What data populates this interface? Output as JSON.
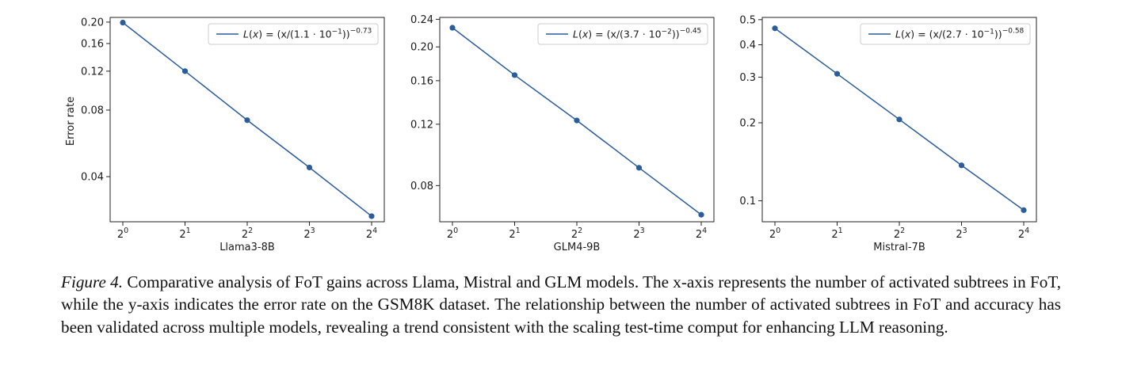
{
  "chart_data": [
    {
      "type": "line",
      "xlabel": "Llama3-8B",
      "ylabel": "Error rate",
      "x": [
        1,
        2,
        4,
        8,
        16
      ],
      "x_tick_labels": [
        {
          "base": "2",
          "exp": "0"
        },
        {
          "base": "2",
          "exp": "1"
        },
        {
          "base": "2",
          "exp": "2"
        },
        {
          "base": "2",
          "exp": "3"
        },
        {
          "base": "2",
          "exp": "4"
        }
      ],
      "x_scale": "log2",
      "y_scale": "log",
      "ylim": [
        0.025,
        0.21
      ],
      "y_ticks": [
        0.04,
        0.08,
        0.12,
        0.16,
        0.2
      ],
      "y_tick_labels": [
        "0.04",
        "0.08",
        "0.12",
        "0.16",
        "0.20"
      ],
      "grid": false,
      "legend_position": "top-right",
      "series": [
        {
          "name": "L(x) = (x/(1.1 · 10^{−1}))^{−0.73}",
          "legend": {
            "prefix": "(x/(1.1 · 10",
            "inner_exp": "−1",
            "mid": "))",
            "outer_exp": "−0.73"
          },
          "values": [
            0.199,
            0.12,
            0.072,
            0.044,
            0.0265
          ],
          "color": "#2b5d9b"
        }
      ]
    },
    {
      "type": "line",
      "xlabel": "GLM4-9B",
      "ylabel": "",
      "x": [
        1,
        2,
        4,
        8,
        16
      ],
      "x_tick_labels": [
        {
          "base": "2",
          "exp": "0"
        },
        {
          "base": "2",
          "exp": "1"
        },
        {
          "base": "2",
          "exp": "2"
        },
        {
          "base": "2",
          "exp": "3"
        },
        {
          "base": "2",
          "exp": "4"
        }
      ],
      "x_scale": "log2",
      "y_scale": "log",
      "ylim": [
        0.063,
        0.243
      ],
      "y_ticks": [
        0.08,
        0.12,
        0.16,
        0.2,
        0.24
      ],
      "y_tick_labels": [
        "0.08",
        "0.12",
        "0.16",
        "0.20",
        "0.24"
      ],
      "grid": false,
      "legend_position": "top-right",
      "series": [
        {
          "name": "L(x) = (x/(3.7 · 10^{−2}))^{−0.45}",
          "legend": {
            "prefix": "(x/(3.7 · 10",
            "inner_exp": "−2",
            "mid": "))",
            "outer_exp": "−0.45"
          },
          "values": [
            0.227,
            0.166,
            0.123,
            0.09,
            0.066
          ],
          "color": "#2b5d9b"
        }
      ]
    },
    {
      "type": "line",
      "xlabel": "Mistral-7B",
      "ylabel": "",
      "x": [
        1,
        2,
        4,
        8,
        16
      ],
      "x_tick_labels": [
        {
          "base": "2",
          "exp": "0"
        },
        {
          "base": "2",
          "exp": "1"
        },
        {
          "base": "2",
          "exp": "2"
        },
        {
          "base": "2",
          "exp": "3"
        },
        {
          "base": "2",
          "exp": "4"
        }
      ],
      "x_scale": "log2",
      "y_scale": "log",
      "ylim": [
        0.083,
        0.51
      ],
      "y_ticks": [
        0.1,
        0.2,
        0.3,
        0.4,
        0.5
      ],
      "y_tick_labels": [
        "0.1",
        "0.2",
        "0.3",
        "0.4",
        "0.5"
      ],
      "grid": false,
      "legend_position": "top-right",
      "series": [
        {
          "name": "L(x) = (x/(2.7 · 10^{−1}))^{−0.58}",
          "legend": {
            "prefix": "(x/(2.7 · 10",
            "inner_exp": "−1",
            "mid": "))",
            "outer_exp": "−0.58"
          },
          "values": [
            0.463,
            0.309,
            0.206,
            0.137,
            0.092
          ],
          "color": "#2b5d9b"
        }
      ]
    }
  ],
  "caption": {
    "label": "Figure 4.",
    "text": "Comparative analysis of FoT gains across Llama, Mistral and GLM models. The x-axis represents the number of activated subtrees in FoT, while the y-axis indicates the error rate on the GSM8K dataset. The relationship between the number of activated subtrees in FoT and accuracy has been validated across multiple models, revealing a trend consistent with the scaling test-time comput for enhancing LLM reasoning."
  }
}
